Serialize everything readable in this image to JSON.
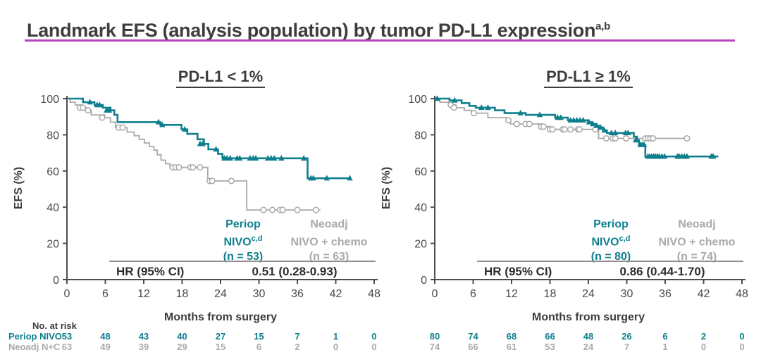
{
  "title": {
    "text": "Landmark EFS (analysis population) by tumor PD-L1 expression",
    "superscript": "a,b"
  },
  "colors": {
    "periop_teal": "#0e7f8e",
    "neoadj_gray": "#a9a9a9",
    "underline_magenta": "#b944b9",
    "dark_text": "#3d3d3d",
    "axis": "#4d4d4d"
  },
  "x_axis": {
    "label": "Months from surgery",
    "ticks": [
      0,
      6,
      12,
      18,
      24,
      30,
      36,
      42,
      48
    ]
  },
  "y_axis": {
    "label": "EFS (%)",
    "ticks": [
      0,
      20,
      40,
      60,
      80,
      100
    ]
  },
  "risk_table": {
    "heading": "No. at risk",
    "row1": "Periop NIVO",
    "row2": "Neoadj N+C"
  },
  "panels": [
    {
      "heading": "PD-L1 < 1%",
      "hr_label": "HR (95% CI)",
      "hr_value": "0.51 (0.28-0.93)",
      "legend": [
        {
          "line1": "Periop",
          "line2": "NIVO",
          "sup": "c,d",
          "n": "(n = 53)"
        },
        {
          "line1": "Neoadj",
          "line2": "NIVO + chemo",
          "sup": "",
          "n": "(n = 63)"
        }
      ]
    },
    {
      "heading": "PD-L1 ≥ 1%",
      "hr_label": "HR (95% CI)",
      "hr_value": "0.86 (0.44-1.70)",
      "legend": [
        {
          "line1": "Periop",
          "line2": "NIVO",
          "sup": "c,d",
          "n": "(n = 80)"
        },
        {
          "line1": "Neoadj",
          "line2": "NIVO + chemo",
          "sup": "",
          "n": "(n = 74)"
        }
      ]
    }
  ],
  "chart_data": [
    {
      "type": "line",
      "subtype": "kaplan_meier_step",
      "title": "PD-L1 < 1%",
      "xlabel": "Months from surgery",
      "ylabel": "EFS (%)",
      "xlim": [
        0,
        48
      ],
      "ylim": [
        0,
        100
      ],
      "x_ticks": [
        0,
        6,
        12,
        18,
        24,
        30,
        36,
        42,
        48
      ],
      "y_ticks": [
        0,
        20,
        40,
        60,
        80,
        100
      ],
      "hr_95ci": "0.51 (0.28-0.93)",
      "series": [
        {
          "name": "Periop NIVO",
          "n": 53,
          "color": "#0e7f8e",
          "marker": "triangle",
          "start": 100,
          "end_x": 44.4,
          "drops": [
            [
              2.5,
              98
            ],
            [
              4.3,
              96.5
            ],
            [
              5.6,
              95
            ],
            [
              6.8,
              93.5
            ],
            [
              7.4,
              91
            ],
            [
              7.9,
              87
            ],
            [
              14.6,
              85.5
            ],
            [
              17.9,
              83
            ],
            [
              18.8,
              80.5
            ],
            [
              20.4,
              77.5
            ],
            [
              21.4,
              75
            ],
            [
              22.1,
              72
            ],
            [
              23.6,
              69.5
            ],
            [
              24.3,
              67
            ],
            [
              37.6,
              56
            ]
          ],
          "censors": [
            [
              3.6,
              98
            ],
            [
              4.7,
              96.5
            ],
            [
              5.1,
              96.5
            ],
            [
              6.2,
              93.5
            ],
            [
              6.6,
              93.5
            ],
            [
              14.3,
              87
            ],
            [
              14.9,
              85.5
            ],
            [
              18.4,
              83
            ],
            [
              20.8,
              75
            ],
            [
              21.2,
              75
            ],
            [
              23.3,
              72
            ],
            [
              24.6,
              67
            ],
            [
              25,
              67
            ],
            [
              25.5,
              67
            ],
            [
              26.6,
              67
            ],
            [
              27,
              67
            ],
            [
              28.6,
              67
            ],
            [
              29.1,
              67
            ],
            [
              29.5,
              67
            ],
            [
              31.4,
              67
            ],
            [
              31.9,
              67
            ],
            [
              32.4,
              67
            ],
            [
              33.5,
              67
            ],
            [
              37,
              67
            ],
            [
              38.1,
              56
            ],
            [
              38.5,
              56
            ],
            [
              40.6,
              56
            ],
            [
              44.2,
              56
            ]
          ]
        },
        {
          "name": "Neoadj NIVO + chemo",
          "n": 63,
          "color": "#a9a9a9",
          "marker": "circle",
          "start": 100,
          "end_x": 39.6,
          "drops": [
            [
              0.5,
              98
            ],
            [
              1.3,
              96.5
            ],
            [
              2.3,
              95
            ],
            [
              3.1,
              93.5
            ],
            [
              3.8,
              91
            ],
            [
              5.9,
              89.5
            ],
            [
              6.8,
              87
            ],
            [
              7.6,
              84
            ],
            [
              9.4,
              81.5
            ],
            [
              10.5,
              79.5
            ],
            [
              11.3,
              77.5
            ],
            [
              12.1,
              75.5
            ],
            [
              12.9,
              73.5
            ],
            [
              13.6,
              71.5
            ],
            [
              14.1,
              69
            ],
            [
              14.7,
              66
            ],
            [
              15.4,
              64
            ],
            [
              16.1,
              62
            ],
            [
              22,
              54.5
            ],
            [
              28.1,
              38.5
            ]
          ],
          "censors": [
            [
              2,
              95
            ],
            [
              2.5,
              95
            ],
            [
              3.3,
              93.5
            ],
            [
              5.5,
              89.5
            ],
            [
              8.1,
              84
            ],
            [
              8.7,
              84
            ],
            [
              16.5,
              62
            ],
            [
              17,
              62
            ],
            [
              17.5,
              62
            ],
            [
              19.3,
              62
            ],
            [
              19.7,
              62
            ],
            [
              20.8,
              62
            ],
            [
              22.3,
              54.5
            ],
            [
              22.7,
              54.5
            ],
            [
              25.7,
              54.5
            ],
            [
              30.7,
              38.5
            ],
            [
              32.1,
              38.5
            ],
            [
              33.3,
              38.5
            ],
            [
              33.7,
              38.5
            ],
            [
              36,
              38.5
            ],
            [
              38.9,
              38.5
            ]
          ]
        }
      ],
      "no_at_risk": {
        "times": [
          0,
          6,
          12,
          18,
          24,
          30,
          36,
          42,
          48
        ],
        "rows": [
          {
            "name": "Periop NIVO",
            "values": [
              53,
              48,
              43,
              40,
              27,
              15,
              7,
              1,
              0
            ]
          },
          {
            "name": "Neoadj N+C",
            "values": [
              63,
              49,
              39,
              29,
              15,
              6,
              2,
              0,
              0
            ]
          }
        ]
      }
    },
    {
      "type": "line",
      "subtype": "kaplan_meier_step",
      "title": "PD-L1 ≥ 1%",
      "xlabel": "Months from surgery",
      "ylabel": "EFS (%)",
      "xlim": [
        0,
        48
      ],
      "ylim": [
        0,
        100
      ],
      "x_ticks": [
        0,
        6,
        12,
        18,
        24,
        30,
        36,
        42,
        48
      ],
      "y_ticks": [
        0,
        20,
        40,
        60,
        80,
        100
      ],
      "hr_95ci": "0.86 (0.44-1.70)",
      "series": [
        {
          "name": "Periop NIVO",
          "n": 80,
          "color": "#0e7f8e",
          "marker": "triangle",
          "start": 100,
          "end_x": 44.3,
          "drops": [
            [
              2.3,
              99
            ],
            [
              4.2,
              97.5
            ],
            [
              5.4,
              96
            ],
            [
              6.4,
              95
            ],
            [
              9.4,
              93.5
            ],
            [
              10.9,
              92
            ],
            [
              14.2,
              91
            ],
            [
              18.8,
              89.5
            ],
            [
              20.8,
              88
            ],
            [
              23.9,
              87
            ],
            [
              24.5,
              86
            ],
            [
              25.1,
              85
            ],
            [
              25.7,
              84
            ],
            [
              26.3,
              82.5
            ],
            [
              26.9,
              81
            ],
            [
              31.1,
              79
            ],
            [
              31.6,
              77
            ],
            [
              31.9,
              74.5
            ],
            [
              32.9,
              68
            ]
          ],
          "censors": [
            [
              0.4,
              100
            ],
            [
              3.1,
              99
            ],
            [
              7.3,
              95
            ],
            [
              8.3,
              95
            ],
            [
              13.4,
              92
            ],
            [
              16.4,
              91
            ],
            [
              19.2,
              89.5
            ],
            [
              19.7,
              89.5
            ],
            [
              21.2,
              88
            ],
            [
              21.7,
              88
            ],
            [
              22.2,
              88
            ],
            [
              22.7,
              88
            ],
            [
              23.2,
              88
            ],
            [
              24.1,
              87
            ],
            [
              24.7,
              86
            ],
            [
              25.3,
              85
            ],
            [
              25.9,
              84
            ],
            [
              26.5,
              82.5
            ],
            [
              27.6,
              81
            ],
            [
              28.2,
              81
            ],
            [
              29.8,
              81
            ],
            [
              30.2,
              81
            ],
            [
              31.4,
              77
            ],
            [
              32.1,
              74.5
            ],
            [
              32.4,
              74.5
            ],
            [
              32.7,
              74.5
            ],
            [
              33.3,
              68
            ],
            [
              33.6,
              68
            ],
            [
              33.9,
              68
            ],
            [
              34.2,
              68
            ],
            [
              34.5,
              68
            ],
            [
              34.8,
              68
            ],
            [
              35.1,
              68
            ],
            [
              35.5,
              68
            ],
            [
              35.9,
              68
            ],
            [
              37.9,
              68
            ],
            [
              38.2,
              68
            ],
            [
              38.6,
              68
            ],
            [
              39,
              68
            ],
            [
              39.4,
              68
            ],
            [
              43.2,
              68
            ],
            [
              43.5,
              68
            ]
          ]
        },
        {
          "name": "Neoadj NIVO + chemo",
          "n": 74,
          "color": "#a9a9a9",
          "marker": "circle",
          "start": 100,
          "end_x": 39.5,
          "drops": [
            [
              0.8,
              98
            ],
            [
              2.7,
              96.5
            ],
            [
              3.3,
              95
            ],
            [
              4.6,
              93.5
            ],
            [
              5.7,
              92
            ],
            [
              8.3,
              89.5
            ],
            [
              11.2,
              88
            ],
            [
              11.8,
              86
            ],
            [
              16.8,
              84.5
            ],
            [
              18.1,
              83
            ],
            [
              25.6,
              78
            ]
          ],
          "censors": [
            [
              2.5,
              96.5
            ],
            [
              3,
              95
            ],
            [
              6.1,
              92
            ],
            [
              11.5,
              88
            ],
            [
              12.8,
              86
            ],
            [
              14.2,
              86
            ],
            [
              14.8,
              86
            ],
            [
              16.6,
              84.5
            ],
            [
              17,
              84.5
            ],
            [
              18,
              83
            ],
            [
              18.4,
              83
            ],
            [
              20,
              83
            ],
            [
              20.3,
              83
            ],
            [
              21.2,
              83
            ],
            [
              22.4,
              83
            ],
            [
              22.6,
              83
            ],
            [
              25.1,
              83
            ],
            [
              26.8,
              78
            ],
            [
              27.8,
              78
            ],
            [
              28.2,
              78
            ],
            [
              29.9,
              78
            ],
            [
              32.9,
              78
            ],
            [
              33.3,
              78
            ],
            [
              33.7,
              78
            ],
            [
              34.1,
              78
            ],
            [
              39.4,
              78
            ]
          ]
        }
      ],
      "no_at_risk": {
        "times": [
          0,
          6,
          12,
          18,
          24,
          30,
          36,
          42,
          48
        ],
        "rows": [
          {
            "name": "Periop NIVO",
            "values": [
              80,
              74,
              68,
              66,
              48,
              26,
              6,
              2,
              0
            ]
          },
          {
            "name": "Neoadj N+C",
            "values": [
              74,
              66,
              61,
              53,
              24,
              7,
              1,
              0,
              0
            ]
          }
        ]
      }
    }
  ]
}
